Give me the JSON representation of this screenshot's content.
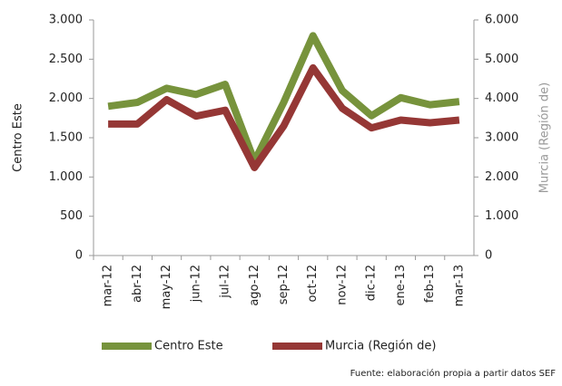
{
  "chart_data": {
    "type": "line",
    "categories": [
      "mar-12",
      "abr-12",
      "may-12",
      "jun-12",
      "jul-12",
      "ago-12",
      "sep-12",
      "oct-12",
      "nov-12",
      "dic-12",
      "ene-13",
      "feb-13",
      "mar-13"
    ],
    "series": [
      {
        "name": "Centro Este",
        "color": "#77933c",
        "values": [
          1900,
          1950,
          2130,
          2050,
          2180,
          1200,
          1950,
          2800,
          2100,
          1780,
          2010,
          1920,
          1960
        ]
      },
      {
        "name": "Murcia (Región de)",
        "color": "#953735",
        "axis": "y2",
        "values": [
          3350,
          3350,
          3970,
          3550,
          3700,
          2240,
          3300,
          4780,
          3750,
          3250,
          3450,
          3380,
          3450
        ]
      }
    ],
    "ylabel": "Centro Este",
    "y2label": "Murcia (Región de)",
    "ylim": [
      0,
      3000
    ],
    "yticks": [
      0,
      500,
      {
        "value": 1000,
        "label": "1.000"
      },
      {
        "value": 1500,
        "label": "1.500"
      },
      {
        "value": 2000,
        "label": "2.000"
      },
      {
        "value": 2500,
        "label": "2.500"
      },
      {
        "value": 3000,
        "label": "3.000"
      }
    ],
    "y2lim": [
      0,
      6000
    ],
    "y2ticks": [
      0,
      {
        "value": 1000,
        "label": "1.000"
      },
      {
        "value": 2000,
        "label": "2.000"
      },
      {
        "value": 3000,
        "label": "3.000"
      },
      {
        "value": 4000,
        "label": "4.000"
      },
      {
        "value": 5000,
        "label": "5.000"
      },
      {
        "value": 6000,
        "label": "6.000"
      }
    ],
    "legend": "bottom",
    "source": "Fuente: elaboración propia a partir datos SEF"
  }
}
